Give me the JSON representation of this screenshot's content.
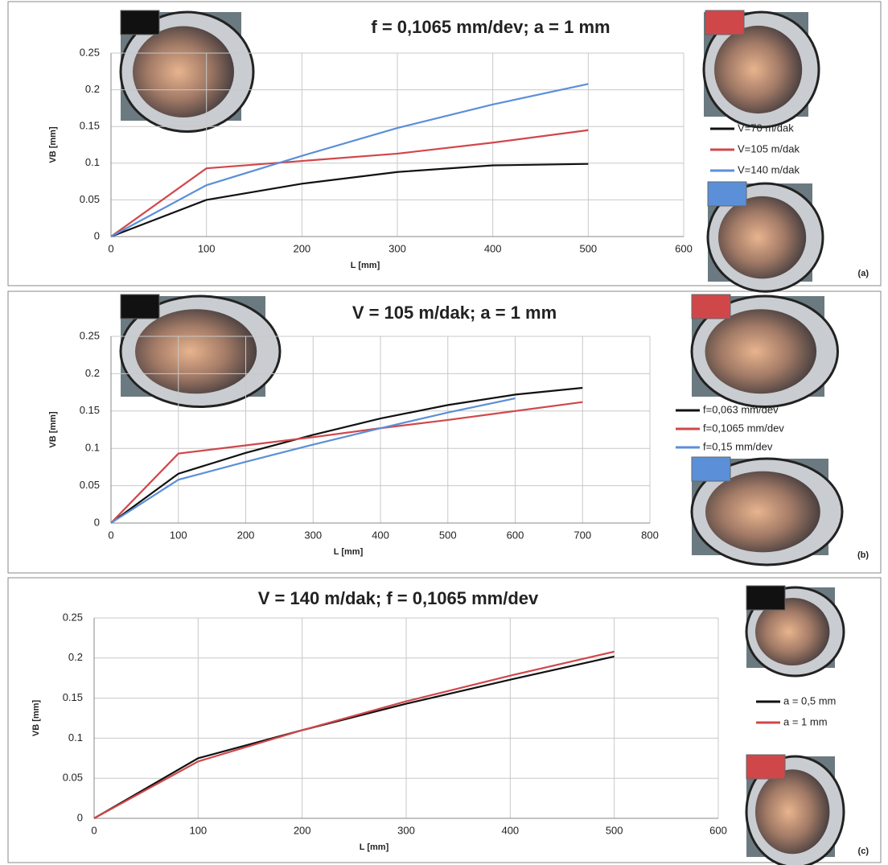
{
  "chart_data": [
    {
      "type": "line",
      "title": "f = 0,1065 mm/dev; a = 1 mm",
      "x_label": "L [mm]",
      "y_label": "VB [mm]",
      "label": "(a)",
      "x": [
        0,
        100,
        200,
        300,
        400,
        500
      ],
      "xlim": [
        0,
        600
      ],
      "xticks": [
        0,
        100,
        200,
        300,
        400,
        500,
        600
      ],
      "ylim": [
        0,
        0.25
      ],
      "yticks": [
        0,
        0.05,
        0.1,
        0.15,
        0.2,
        0.25
      ],
      "grid": true,
      "series": [
        {
          "name": "V=70 m/dak",
          "color": "#111111",
          "values": [
            0,
            0.05,
            0.072,
            0.088,
            0.097,
            0.099
          ]
        },
        {
          "name": "V=105 m/dak",
          "color": "#d0474a",
          "values": [
            0,
            0.093,
            0.103,
            0.113,
            0.128,
            0.145
          ]
        },
        {
          "name": "V=140 m/dak",
          "color": "#5b8fd8",
          "values": [
            0,
            0.07,
            0.11,
            0.148,
            0.18,
            0.208
          ]
        }
      ]
    },
    {
      "type": "line",
      "title": "V = 105 m/dak; a = 1 mm",
      "x_label": "L [mm]",
      "y_label": "VB [mm]",
      "label": "(b)",
      "x": [
        0,
        100,
        200,
        300,
        400,
        500,
        600,
        700
      ],
      "xlim": [
        0,
        800
      ],
      "xticks": [
        0,
        100,
        200,
        300,
        400,
        500,
        600,
        700,
        800
      ],
      "ylim": [
        0,
        0.25
      ],
      "yticks": [
        0,
        0.05,
        0.1,
        0.15,
        0.2,
        0.25
      ],
      "grid": true,
      "series": [
        {
          "name": "f=0,063 mm/dev",
          "color": "#111111",
          "values": [
            0,
            0.066,
            0.094,
            0.118,
            0.14,
            0.158,
            0.172,
            0.181
          ]
        },
        {
          "name": "f=0,1065 mm/dev",
          "color": "#d0474a",
          "values": [
            0,
            0.093,
            0.104,
            0.115,
            0.127,
            0.138,
            0.15,
            0.162
          ]
        },
        {
          "name": "f=0,15 mm/dev",
          "color": "#5b8fd8",
          "values": [
            0,
            0.058,
            0.082,
            0.105,
            0.127,
            0.148,
            0.167,
            null
          ]
        }
      ]
    },
    {
      "type": "line",
      "title": "V = 140 m/dak; f = 0,1065 mm/dev",
      "x_label": "L [mm]",
      "y_label": "VB [mm]",
      "label": "(c)",
      "x": [
        0,
        100,
        200,
        300,
        400,
        500
      ],
      "xlim": [
        0,
        600
      ],
      "xticks": [
        0,
        100,
        200,
        300,
        400,
        500,
        600
      ],
      "ylim": [
        0,
        0.25
      ],
      "yticks": [
        0,
        0.05,
        0.1,
        0.15,
        0.2,
        0.25
      ],
      "grid": true,
      "series": [
        {
          "name": "a = 0,5 mm",
          "color": "#111111",
          "values": [
            0,
            0.075,
            0.11,
            0.143,
            0.173,
            0.202
          ]
        },
        {
          "name": "a = 1 mm",
          "color": "#d0474a",
          "values": [
            0,
            0.071,
            0.11,
            0.146,
            0.178,
            0.208
          ]
        }
      ]
    }
  ]
}
